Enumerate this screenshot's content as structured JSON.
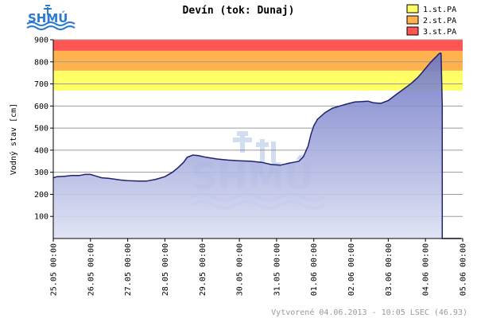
{
  "brand": {
    "logo_text": "SHMÚ"
  },
  "footer": {
    "text": "Vytvorené 04.06.2013 - 10:05 LSEC (46.93)"
  },
  "colors": {
    "band_1": "#ffff66",
    "band_2": "#ffb24d",
    "band_3": "#ff5555",
    "fill_top": "#6b73c4",
    "fill_bottom": "#dde1f4",
    "line": "#1e2270"
  },
  "chart_data": {
    "type": "area",
    "title": "Devín (tok: Dunaj)",
    "xlabel": "",
    "ylabel": "Vodný stav [cm]",
    "ylim": [
      0,
      900
    ],
    "yticks": [
      100,
      200,
      300,
      400,
      500,
      600,
      700,
      800,
      900
    ],
    "xlim": [
      0,
      11
    ],
    "xticks": [
      {
        "x": 0,
        "label": "25.05 00:00"
      },
      {
        "x": 1,
        "label": "26.05 00:00"
      },
      {
        "x": 2,
        "label": "27.05 00:00"
      },
      {
        "x": 3,
        "label": "28.05 00:00"
      },
      {
        "x": 4,
        "label": "29.05 00:00"
      },
      {
        "x": 5,
        "label": "30.05 00:00"
      },
      {
        "x": 6,
        "label": "31.05 00:00"
      },
      {
        "x": 7,
        "label": "01.06 00:00"
      },
      {
        "x": 8,
        "label": "02.06 00:00"
      },
      {
        "x": 9,
        "label": "03.06 00:00"
      },
      {
        "x": 10,
        "label": "04.06 00:00"
      },
      {
        "x": 11,
        "label": "05.06 00:00"
      }
    ],
    "thresholds": [
      {
        "name": "1.st.PA",
        "from": 670,
        "to": 760
      },
      {
        "name": "2.st.PA",
        "from": 760,
        "to": 850
      },
      {
        "name": "3.st.PA",
        "from": 850,
        "to": 900
      }
    ],
    "legend_position": "top-right",
    "grid": true,
    "series": [
      {
        "x": [
          0,
          0.1,
          0.3,
          0.5,
          0.7,
          0.85,
          1.0,
          1.1,
          1.3,
          1.5,
          1.8,
          2.0,
          2.3,
          2.5,
          2.75,
          3.0,
          3.2,
          3.35,
          3.5,
          3.6,
          3.75,
          3.9,
          4.1,
          4.4,
          4.7,
          5.0,
          5.3,
          5.6,
          5.85,
          6.1,
          6.3,
          6.45,
          6.6,
          6.72,
          6.85,
          6.92,
          7.0,
          7.1,
          7.3,
          7.5,
          7.7,
          7.9,
          8.1,
          8.3,
          8.45,
          8.6,
          8.8,
          9.0,
          9.2,
          9.4,
          9.6,
          9.8,
          10.0,
          10.15,
          10.3,
          10.35,
          10.4,
          10.42,
          10.45
        ],
        "y": [
          275,
          280,
          282,
          285,
          285,
          290,
          290,
          285,
          275,
          272,
          265,
          262,
          260,
          260,
          268,
          280,
          300,
          320,
          345,
          368,
          378,
          375,
          368,
          360,
          355,
          352,
          350,
          345,
          335,
          332,
          340,
          345,
          350,
          370,
          420,
          470,
          510,
          540,
          570,
          590,
          600,
          610,
          618,
          620,
          622,
          615,
          612,
          625,
          650,
          675,
          700,
          730,
          770,
          800,
          825,
          835,
          840,
          838,
          600
        ]
      }
    ]
  }
}
